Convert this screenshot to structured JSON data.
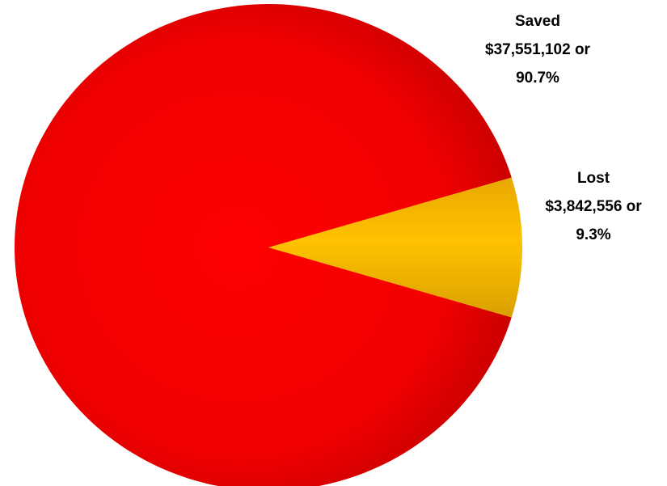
{
  "chart_data": {
    "type": "pie",
    "title": "",
    "slices": [
      {
        "name": "Lost",
        "value": 3842556,
        "percent": 9.3,
        "value_label": "$3,842,556 or",
        "percent_label": "9.3%",
        "color": "#f5b800"
      },
      {
        "name": "Saved",
        "value": 37551102,
        "percent": 90.7,
        "value_label": "$37,551,102 or",
        "percent_label": "90.7%",
        "color": "#ee0000"
      }
    ],
    "legend": "none"
  }
}
